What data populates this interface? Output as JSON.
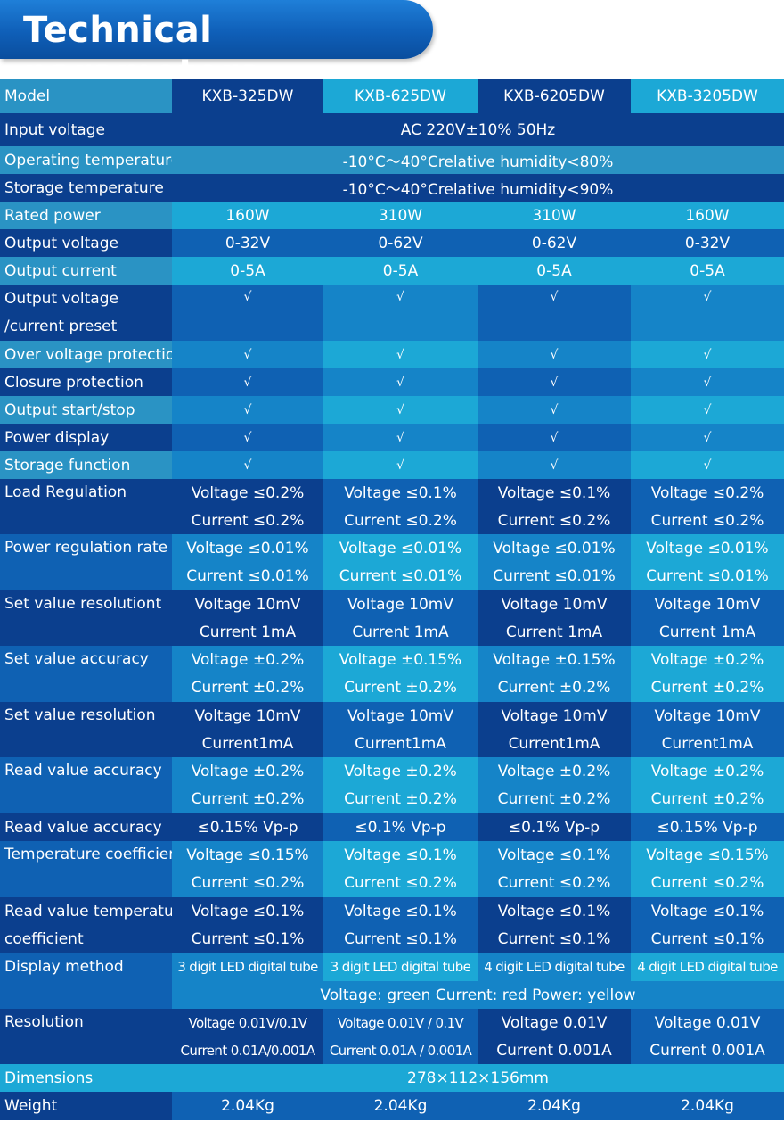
{
  "header": {
    "title": "Technical parameters"
  },
  "models": [
    "KXB-325DW",
    "KXB-625DW",
    "KXB-6205DW",
    "KXB-3205DW"
  ],
  "rows": {
    "model_label": "Model",
    "input_voltage": {
      "label": "Input voltage",
      "value": "AC 220V±10% 50Hz"
    },
    "operating_temperature": {
      "label": "Operating temperature",
      "value": "-10°C～40°Crelative humidity<80%"
    },
    "storage_temperature": {
      "label": "Storage temperature",
      "value": "-10°C～40°Crelative humidity<90%"
    },
    "rated_power": {
      "label": "Rated power",
      "values": [
        "160W",
        "310W",
        "310W",
        "160W"
      ]
    },
    "output_voltage": {
      "label": "Output voltage",
      "values": [
        "0-32V",
        "0-62V",
        "0-62V",
        "0-32V"
      ]
    },
    "output_current": {
      "label": "Output current",
      "values": [
        "0-5A",
        "0-5A",
        "0-5A",
        "0-5A"
      ]
    },
    "preset": {
      "label_line1": "Output voltage",
      "label_line2": "/current preset",
      "values": [
        "√",
        "√",
        "√",
        "√"
      ]
    },
    "over_voltage": {
      "label": "Over voltage protection",
      "values": [
        "√",
        "√",
        "√",
        "√"
      ]
    },
    "closure": {
      "label": "Closure protection",
      "values": [
        "√",
        "√",
        "√",
        "√"
      ]
    },
    "start_stop": {
      "label": "Output start/stop",
      "values": [
        "√",
        "√",
        "√",
        "√"
      ]
    },
    "power_display": {
      "label": "Power display",
      "values": [
        "√",
        "√",
        "√",
        "√"
      ]
    },
    "storage_function": {
      "label": "Storage function",
      "values": [
        "√",
        "√",
        "√",
        "√"
      ]
    },
    "load_regulation": {
      "label": "Load Regulation",
      "values": [
        [
          "Voltage ≤0.2%",
          "Current ≤0.2%"
        ],
        [
          "Voltage ≤0.1%",
          "Current ≤0.2%"
        ],
        [
          "Voltage ≤0.1%",
          "Current ≤0.2%"
        ],
        [
          "Voltage ≤0.2%",
          "Current ≤0.2%"
        ]
      ]
    },
    "power_regulation": {
      "label": "Power regulation rate",
      "values": [
        [
          "Voltage ≤0.01%",
          "Current ≤0.01%"
        ],
        [
          "Voltage ≤0.01%",
          "Current ≤0.01%"
        ],
        [
          "Voltage ≤0.01%",
          "Current ≤0.01%"
        ],
        [
          "Voltage ≤0.01%",
          "Current ≤0.01%"
        ]
      ]
    },
    "set_resolutiont": {
      "label": "Set value resolutiont",
      "values": [
        [
          "Voltage 10mV",
          "Current 1mA"
        ],
        [
          "Voltage 10mV",
          "Current 1mA"
        ],
        [
          "Voltage 10mV",
          "Current 1mA"
        ],
        [
          "Voltage 10mV",
          "Current 1mA"
        ]
      ]
    },
    "set_accuracy": {
      "label": "Set value accuracy",
      "values": [
        [
          "Voltage ±0.2%",
          "Current ±0.2%"
        ],
        [
          "Voltage ±0.15%",
          "Current ±0.2%"
        ],
        [
          "Voltage ±0.15%",
          "Current ±0.2%"
        ],
        [
          "Voltage ±0.2%",
          "Current ±0.2%"
        ]
      ]
    },
    "set_resolution": {
      "label": "Set value resolution",
      "values": [
        [
          "Voltage 10mV",
          "Current1mA"
        ],
        [
          "Voltage 10mV",
          "Current1mA"
        ],
        [
          "Voltage 10mV",
          "Current1mA"
        ],
        [
          "Voltage 10mV",
          "Current1mA"
        ]
      ]
    },
    "read_accuracy": {
      "label": "Read value accuracy",
      "values": [
        [
          "Voltage ±0.2%",
          "Current ±0.2%"
        ],
        [
          "Voltage ±0.2%",
          "Current ±0.2%"
        ],
        [
          "Voltage ±0.2%",
          "Current ±0.2%"
        ],
        [
          "Voltage ±0.2%",
          "Current ±0.2%"
        ]
      ]
    },
    "read_accuracy_ripple": {
      "label": "Read value accuracy",
      "values": [
        "≤0.15% Vp-p",
        "≤0.1% Vp-p",
        "≤0.1% Vp-p",
        "≤0.15% Vp-p"
      ]
    },
    "temp_coefficient": {
      "label": "Temperature coefficient",
      "values": [
        [
          "Voltage ≤0.15%",
          "Current ≤0.2%"
        ],
        [
          "Voltage ≤0.1%",
          "Current ≤0.2%"
        ],
        [
          "Voltage ≤0.1%",
          "Current ≤0.2%"
        ],
        [
          "Voltage ≤0.15%",
          "Current ≤0.2%"
        ]
      ]
    },
    "read_temp_coefficient": {
      "label_line1": "Read value temperature",
      "label_line2": "coefficient",
      "values": [
        [
          "Voltage ≤0.1%",
          "Current ≤0.1%"
        ],
        [
          "Voltage ≤0.1%",
          "Current ≤0.1%"
        ],
        [
          "Voltage ≤0.1%",
          "Current ≤0.1%"
        ],
        [
          "Voltage ≤0.1%",
          "Current ≤0.1%"
        ]
      ]
    },
    "display_method": {
      "label": "Display method",
      "values": [
        "3 digit LED digital tube",
        "3 digit LED digital tube",
        "4 digit LED digital tube",
        "4 digit LED digital tube"
      ]
    },
    "display_colors": {
      "value": "Voltage: green Current: red Power: yellow"
    },
    "resolution": {
      "label": "Resolution",
      "values": [
        [
          "Voltage 0.01V/0.1V",
          "Current 0.01A/0.001A"
        ],
        [
          "Voltage 0.01V / 0.1V",
          "Current 0.01A / 0.001A"
        ],
        [
          "Voltage 0.01V",
          "Current 0.001A"
        ],
        [
          "Voltage 0.01V",
          "Current 0.001A"
        ]
      ]
    },
    "dimensions": {
      "label": "Dimensions",
      "value": "278×112×156mm"
    },
    "weight": {
      "label": "Weight",
      "values": [
        "2.04Kg",
        "2.04Kg",
        "2.04Kg",
        "2.04Kg"
      ]
    }
  }
}
